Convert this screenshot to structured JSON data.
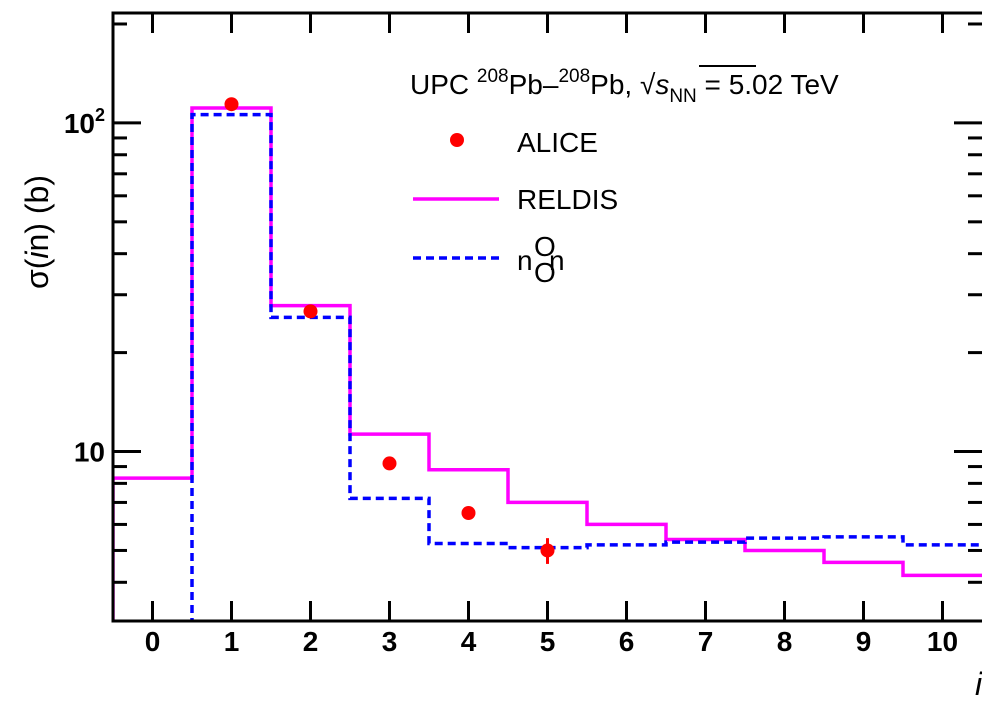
{
  "chart_data": {
    "type": "histogram",
    "header": {
      "prefix": "UPC ",
      "mass_number": "208",
      "element1": "Pb–",
      "element2": "Pb, ",
      "sqrt": "√",
      "s": "s",
      "s_sub": "NN",
      "energy": " = 5.02 TeV"
    },
    "ylabel": {
      "sigma": "σ(",
      "i": "i",
      "n": "n) (b)"
    },
    "xlabel": "i",
    "x_ticks": [
      "0",
      "1",
      "2",
      "3",
      "4",
      "5",
      "6",
      "7",
      "8",
      "9",
      "10"
    ],
    "y_ticks": [
      {
        "value": 100,
        "base": "10",
        "exp": "2"
      },
      {
        "value": 10,
        "base": "10",
        "exp": ""
      }
    ],
    "xlim": [
      -0.5,
      10.5
    ],
    "ylim": [
      3.05,
      216
    ],
    "log_y": true,
    "grid": false,
    "legend_position": "top-right",
    "legend": [
      {
        "key": "alice",
        "label": "ALICE"
      },
      {
        "key": "reldis",
        "label": "RELDIS"
      },
      {
        "key": "non",
        "label_main": "n",
        "label_sup": "O",
        "label_sub": "O",
        "label_tail": "n"
      }
    ],
    "series": [
      {
        "key": "reldis",
        "name": "RELDIS",
        "style": "step",
        "color": "#ff00ff",
        "bins": [
          -0.5,
          0.5,
          1.5,
          2.5,
          3.5,
          4.5,
          5.5,
          6.5,
          7.5,
          8.5,
          9.5,
          10.5
        ],
        "values": [
          8.3,
          111,
          27.8,
          11.3,
          8.8,
          7.0,
          6.0,
          5.4,
          5.0,
          4.6,
          4.2
        ],
        "start_from_bottom": true
      },
      {
        "key": "non",
        "name": "nOOn",
        "style": "step-dashed",
        "color": "#0000ff",
        "bins": [
          -0.5,
          0.5,
          1.5,
          2.5,
          3.5,
          4.5,
          5.5,
          6.5,
          7.5,
          8.5,
          9.5,
          10.5
        ],
        "values": [
          null,
          106,
          25.6,
          7.2,
          5.25,
          5.1,
          5.2,
          5.3,
          5.45,
          5.5,
          5.2
        ],
        "start_from_bottom": true
      },
      {
        "key": "alice",
        "name": "ALICE",
        "style": "points",
        "color": "#ff0000",
        "x": [
          1,
          2,
          3,
          4,
          5
        ],
        "y": [
          114,
          26.7,
          9.2,
          6.5,
          5.0
        ],
        "yerr": [
          0,
          0,
          0,
          0.25,
          0.45
        ]
      }
    ]
  }
}
